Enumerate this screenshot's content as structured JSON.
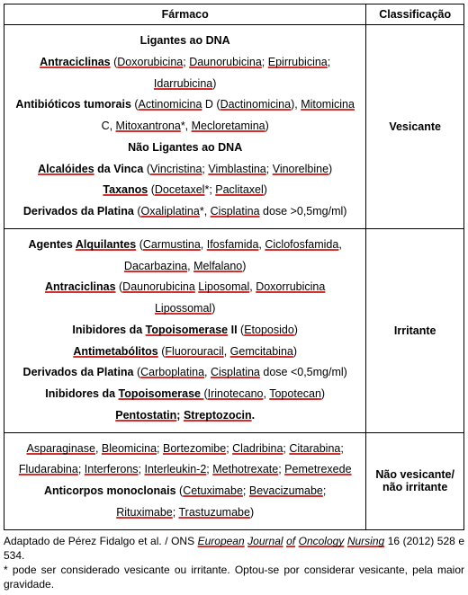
{
  "headers": {
    "farmaco": "Fármaco",
    "classificacao": "Classificação"
  },
  "rows": [
    {
      "classificacao": "Vesicante",
      "lines": [
        {
          "runs": [
            {
              "t": "Ligantes ao DNA",
              "b": true
            }
          ]
        },
        {
          "runs": [
            {
              "t": "Antraciclinas",
              "b": true,
              "u": true
            },
            {
              "t": " ("
            },
            {
              "t": "Doxorubicina",
              "u": true
            },
            {
              "t": "; "
            },
            {
              "t": "Daunorubicina",
              "u": true
            },
            {
              "t": "; "
            },
            {
              "t": "Epirrubicina",
              "u": true
            },
            {
              "t": ";"
            }
          ]
        },
        {
          "runs": [
            {
              "t": "Idarrubicina",
              "u": true
            },
            {
              "t": ")"
            }
          ]
        },
        {
          "runs": [
            {
              "t": "Antibióticos tumorais",
              "b": true
            },
            {
              "t": " ("
            },
            {
              "t": "Actinomicina",
              "u": true
            },
            {
              "t": " D ("
            },
            {
              "t": "Dactinomicina",
              "u": true
            },
            {
              "t": "), "
            },
            {
              "t": "Mitomicina",
              "u": true
            }
          ]
        },
        {
          "runs": [
            {
              "t": "C, "
            },
            {
              "t": "Mitoxantrona",
              "u": true
            },
            {
              "t": "*, "
            },
            {
              "t": "Mecloretamina",
              "u": true
            },
            {
              "t": ")"
            }
          ]
        },
        {
          "runs": [
            {
              "t": "Não Ligantes ao DNA",
              "b": true
            }
          ]
        },
        {
          "runs": [
            {
              "t": "Alcalóides",
              "b": true,
              "u": true
            },
            {
              "t": " da Vinca",
              "b": true
            },
            {
              "t": " ("
            },
            {
              "t": "Vincristina",
              "u": true
            },
            {
              "t": "; "
            },
            {
              "t": "Vimblastina",
              "u": true
            },
            {
              "t": "; "
            },
            {
              "t": "Vinorelbine",
              "u": true
            },
            {
              "t": ")"
            }
          ]
        },
        {
          "runs": [
            {
              "t": "Taxanos",
              "b": true,
              "u": true
            },
            {
              "t": " ("
            },
            {
              "t": "Docetaxel",
              "u": true
            },
            {
              "t": "*; "
            },
            {
              "t": "Paclitaxel",
              "u": true
            },
            {
              "t": ")"
            }
          ]
        },
        {
          "runs": [
            {
              "t": "Derivados da Platina",
              "b": true
            },
            {
              "t": " ("
            },
            {
              "t": "Oxaliplatina",
              "u": true
            },
            {
              "t": "*, "
            },
            {
              "t": "Cisplatina",
              "u": true
            },
            {
              "t": " dose >0,5mg/ml)"
            }
          ]
        }
      ]
    },
    {
      "classificacao": "Irritante",
      "lines": [
        {
          "runs": [
            {
              "t": "Agentes ",
              "b": true
            },
            {
              "t": "Alquilantes",
              "b": true,
              "u": true
            },
            {
              "t": " ("
            },
            {
              "t": "Carmustina",
              "u": true
            },
            {
              "t": ", "
            },
            {
              "t": "Ifosfamida",
              "u": true
            },
            {
              "t": ", "
            },
            {
              "t": "Ciclofosfamida",
              "u": true
            },
            {
              "t": ","
            }
          ]
        },
        {
          "runs": [
            {
              "t": "Dacarbazina",
              "u": true
            },
            {
              "t": ", "
            },
            {
              "t": "Melfalano",
              "u": true
            },
            {
              "t": ")"
            }
          ]
        },
        {
          "runs": [
            {
              "t": "Antraciclinas",
              "b": true,
              "u": true
            },
            {
              "t": " ("
            },
            {
              "t": "Daunorubicina",
              "u": true
            },
            {
              "t": " "
            },
            {
              "t": "Liposomal",
              "u": true
            },
            {
              "t": ", "
            },
            {
              "t": "Doxorrubicina",
              "u": true
            }
          ]
        },
        {
          "runs": [
            {
              "t": "Lipossomal",
              "u": true
            },
            {
              "t": ")"
            }
          ]
        },
        {
          "runs": [
            {
              "t": "Inibidores da ",
              "b": true
            },
            {
              "t": "Topoisomerase",
              "b": true,
              "u": true
            },
            {
              "t": " II",
              "b": true
            },
            {
              "t": " ("
            },
            {
              "t": "Etoposido",
              "u": true
            },
            {
              "t": ")"
            }
          ]
        },
        {
          "runs": [
            {
              "t": "Antimetabólitos",
              "b": true,
              "u": true
            },
            {
              "t": " ("
            },
            {
              "t": "Fluorouracil",
              "u": true
            },
            {
              "t": ", "
            },
            {
              "t": "Gemcitabina",
              "u": true
            },
            {
              "t": ")"
            }
          ]
        },
        {
          "runs": [
            {
              "t": "Derivados da Platina",
              "b": true
            },
            {
              "t": " ("
            },
            {
              "t": "Carboplatina",
              "u": true
            },
            {
              "t": ", "
            },
            {
              "t": "Cisplatina",
              "u": true
            },
            {
              "t": " dose <0,5mg/ml)"
            }
          ]
        },
        {
          "runs": [
            {
              "t": "Inibidores da ",
              "b": true
            },
            {
              "t": "Topoisomerase ",
              "b": true,
              "u": true
            },
            {
              "t": " ("
            },
            {
              "t": "Irinotecano",
              "u": true
            },
            {
              "t": ", "
            },
            {
              "t": "Topotecan",
              "u": true
            },
            {
              "t": ")"
            }
          ]
        },
        {
          "runs": [
            {
              "t": "Pentostatin",
              "b": true,
              "u": true
            },
            {
              "t": "; ",
              "b": true
            },
            {
              "t": "Streptozocin",
              "b": true,
              "u": true
            },
            {
              "t": ".",
              "b": true
            }
          ]
        }
      ]
    },
    {
      "classificacao": "Não vesicante/ não irritante",
      "lines": [
        {
          "runs": [
            {
              "t": "Asparaginase",
              "u": true
            },
            {
              "t": ", "
            },
            {
              "t": "Bleomicina",
              "u": true
            },
            {
              "t": "; "
            },
            {
              "t": "Bortezomibe",
              "u": true
            },
            {
              "t": "; "
            },
            {
              "t": "Cladribina",
              "u": true
            },
            {
              "t": "; "
            },
            {
              "t": "Citarabina",
              "u": true
            },
            {
              "t": ";"
            }
          ]
        },
        {
          "runs": [
            {
              "t": "Fludarabina",
              "u": true
            },
            {
              "t": "; "
            },
            {
              "t": "Interferons",
              "u": true
            },
            {
              "t": "; "
            },
            {
              "t": "Interleukin-2",
              "u": true
            },
            {
              "t": "; "
            },
            {
              "t": "Methotrexate",
              "u": true
            },
            {
              "t": "; "
            },
            {
              "t": "Pemetrexede",
              "u": true
            }
          ]
        },
        {
          "runs": [
            {
              "t": "Anticorpos monoclonais",
              "b": true
            },
            {
              "t": " ("
            },
            {
              "t": "Cetuximabe",
              "u": true
            },
            {
              "t": "; "
            },
            {
              "t": "Bevacizumabe",
              "u": true
            },
            {
              "t": ";"
            }
          ]
        },
        {
          "runs": [
            {
              "t": "Rituximabe",
              "u": true
            },
            {
              "t": "; "
            },
            {
              "t": "Trastuzumabe",
              "u": true
            },
            {
              "t": ")"
            }
          ]
        }
      ]
    }
  ],
  "footnote": {
    "parts": [
      {
        "t": "Adaptado de Pérez Fidalgo et al. / ONS "
      },
      {
        "t": "European",
        "i": true,
        "u": true
      },
      {
        "t": " ",
        "i": true
      },
      {
        "t": "Journal",
        "i": true,
        "u": true
      },
      {
        "t": " ",
        "i": true
      },
      {
        "t": "of",
        "i": true,
        "u": true
      },
      {
        "t": " ",
        "i": true
      },
      {
        "t": "Oncology",
        "i": true,
        "u": true
      },
      {
        "t": " ",
        "i": true
      },
      {
        "t": "Nursing",
        "i": true,
        "u": true
      },
      {
        "t": " 16 (2012) 528 e 534."
      }
    ],
    "note2": "* pode ser considerado vesicante ou irritante. Optou-se por considerar vesicante, pela maior gravidade."
  }
}
